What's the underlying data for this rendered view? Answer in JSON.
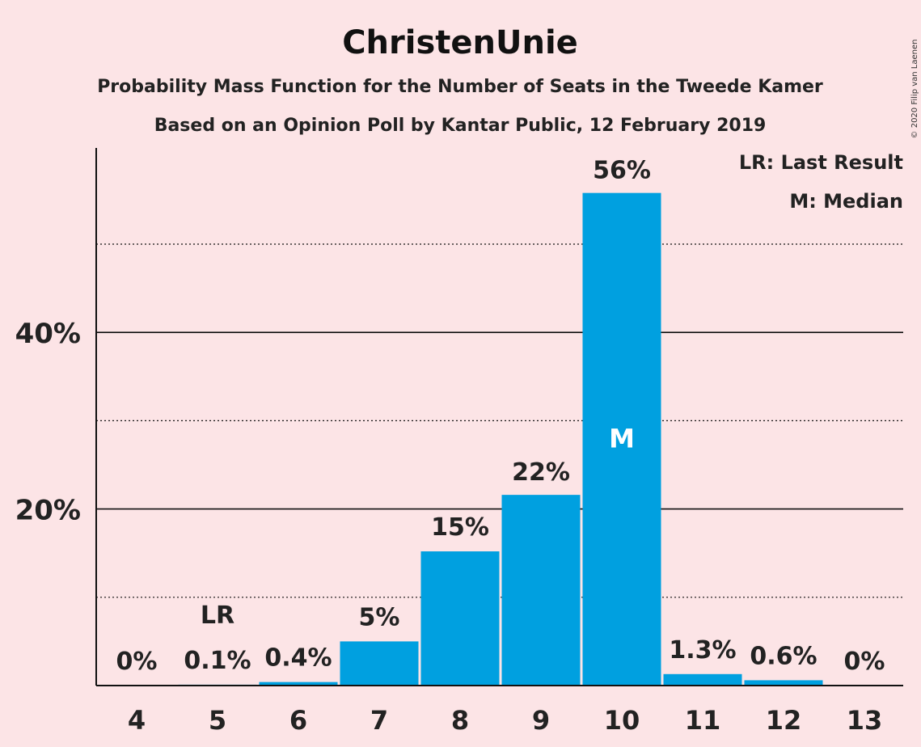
{
  "chart_data": {
    "type": "bar",
    "title": "ChristenUnie",
    "subtitle": "Probability Mass Function for the Number of Seats in the Tweede Kamer",
    "subtitle2": "Based on an Opinion Poll by Kantar Public, 12 February 2019",
    "copyright": "© 2020 Filip van Laenen",
    "categories": [
      "4",
      "5",
      "6",
      "7",
      "8",
      "9",
      "10",
      "11",
      "12",
      "13"
    ],
    "values": [
      0,
      0.1,
      0.4,
      5,
      15.2,
      21.6,
      55.8,
      1.3,
      0.6,
      0
    ],
    "value_labels": [
      "0%",
      "0.1%",
      "0.4%",
      "5%",
      "15%",
      "22%",
      "56%",
      "1.3%",
      "0.6%",
      "0%"
    ],
    "last_result_category": "5",
    "last_result_marker": "LR",
    "median_category": "10",
    "median_marker": "M",
    "ylim": [
      0,
      61
    ],
    "yticks": [
      20,
      40
    ],
    "ytick_labels": [
      "20%",
      "40%"
    ],
    "minor_gridlines": [
      10,
      30,
      50
    ],
    "legend": [
      "LR: Last Result",
      "M: Median"
    ],
    "legend_position": "top-right",
    "bar_color": "#00a0e0",
    "background_color": "#fce4e6"
  }
}
